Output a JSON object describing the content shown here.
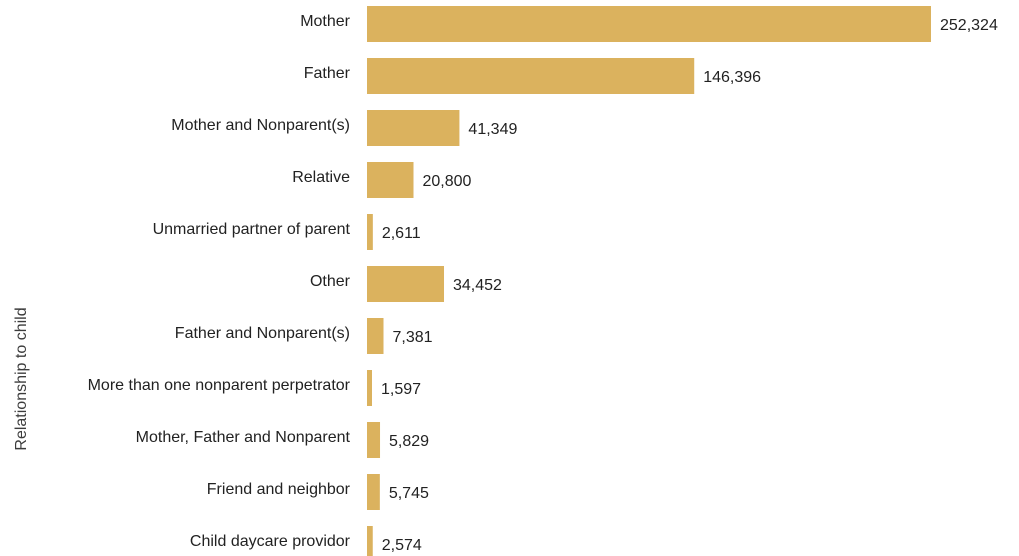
{
  "chart_data": {
    "type": "bar",
    "orientation": "horizontal",
    "title": "",
    "xlabel": "",
    "ylabel": "Relationship to child",
    "categories": [
      "Mother",
      "Father",
      "Mother and Nonparent(s)",
      "Relative",
      "Unmarried partner of parent",
      "Other",
      "Father and Nonparent(s)",
      "More than one nonparent perpetrator",
      "Mother, Father and Nonparent",
      "Friend and neighbor",
      "Child daycare providor"
    ],
    "values": [
      252324,
      146396,
      41349,
      20800,
      2611,
      34452,
      7381,
      1597,
      5829,
      5745,
      2574
    ],
    "value_labels": [
      "252,324",
      "146,396",
      "41,349",
      "20,800",
      "2,611",
      "34,452",
      "7,381",
      "1,597",
      "5,829",
      "5,745",
      "2,574"
    ],
    "xlim": [
      0,
      252324
    ],
    "grid": false,
    "legend": "none",
    "bar_color": "#dbb25e"
  }
}
